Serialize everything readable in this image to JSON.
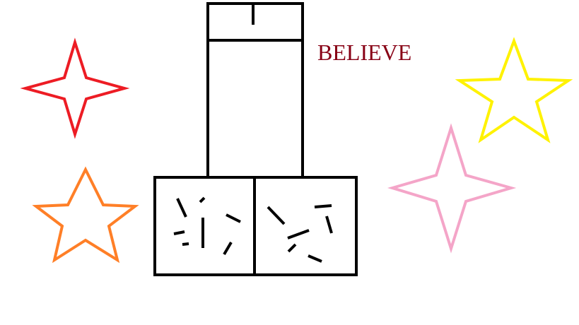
{
  "text": {
    "believe": "BELIEVE"
  },
  "colors": {
    "background": "#ffffff",
    "outline": "#000000",
    "believe_text": "#880015",
    "star_red": "#ed1c24",
    "star_orange": "#ff7f27",
    "star_yellow": "#fff200",
    "star_pink": "#f4a5c8"
  },
  "icons": [
    "red-four-point-star-icon",
    "orange-five-point-star-icon",
    "yellow-five-point-star-icon",
    "pink-four-point-star-icon",
    "pillar-drawing"
  ]
}
